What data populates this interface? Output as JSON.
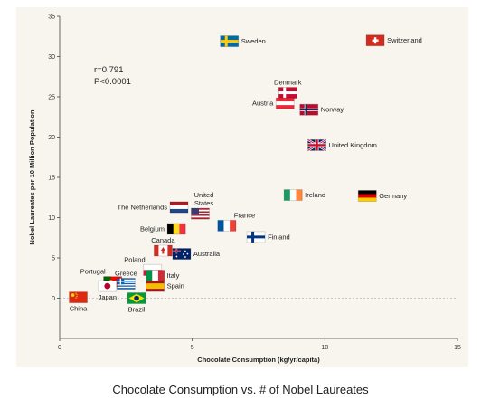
{
  "caption": "Chocolate Consumption vs. # of Nobel Laureates",
  "chart_data": {
    "type": "scatter",
    "title": "",
    "xlabel": "Chocolate Consumption (kg/yr/capita)",
    "ylabel": "Nobel Laureates per 10 Million Population",
    "xlim": [
      0,
      15
    ],
    "ylim": [
      -5,
      35
    ],
    "xticks": [
      0,
      5,
      10,
      15
    ],
    "yticks": [
      0,
      5,
      10,
      15,
      20,
      25,
      30,
      35
    ],
    "grid": false,
    "reference_line": 0,
    "annotations": [
      "r=0.791",
      "P<0.0001"
    ],
    "points": [
      {
        "country": "Switzerland",
        "x": 11.9,
        "y": 32.0,
        "label": "Switzerland",
        "flag": "switzerland",
        "label_side": "right"
      },
      {
        "country": "Sweden",
        "x": 6.4,
        "y": 31.9,
        "label": "Sweden",
        "flag": "sweden",
        "label_side": "right"
      },
      {
        "country": "Denmark",
        "x": 8.6,
        "y": 25.5,
        "label": "Denmark",
        "flag": "denmark",
        "label_side": "above"
      },
      {
        "country": "Austria",
        "x": 8.5,
        "y": 24.2,
        "label": "Austria",
        "flag": "austria",
        "label_side": "left"
      },
      {
        "country": "Norway",
        "x": 9.4,
        "y": 23.4,
        "label": "Norway",
        "flag": "norway",
        "label_side": "right"
      },
      {
        "country": "United Kingdom",
        "x": 9.7,
        "y": 19.0,
        "label": "United Kingdom",
        "flag": "uk",
        "label_side": "right"
      },
      {
        "country": "Ireland",
        "x": 8.8,
        "y": 12.8,
        "label": "Ireland",
        "flag": "ireland",
        "label_side": "right"
      },
      {
        "country": "Germany",
        "x": 11.6,
        "y": 12.7,
        "label": "Germany",
        "flag": "germany",
        "label_side": "right"
      },
      {
        "country": "United States",
        "x": 5.3,
        "y": 10.5,
        "label": "United\nStates",
        "flag": "usa",
        "label_side": "above-left"
      },
      {
        "country": "The Netherlands",
        "x": 4.5,
        "y": 11.3,
        "label": "The Netherlands",
        "flag": "netherlands",
        "label_side": "left"
      },
      {
        "country": "France",
        "x": 6.3,
        "y": 9.0,
        "label": "France",
        "flag": "france",
        "label_side": "above-right"
      },
      {
        "country": "Belgium",
        "x": 4.4,
        "y": 8.6,
        "label": "Belgium",
        "flag": "belgium",
        "label_side": "left"
      },
      {
        "country": "Finland",
        "x": 7.4,
        "y": 7.6,
        "label": "Finland",
        "flag": "finland",
        "label_side": "right"
      },
      {
        "country": "Canada",
        "x": 3.9,
        "y": 5.9,
        "label": "Canada",
        "flag": "canada",
        "label_side": "above"
      },
      {
        "country": "Australia",
        "x": 4.6,
        "y": 5.5,
        "label": "Australia",
        "flag": "australia",
        "label_side": "right"
      },
      {
        "country": "Poland",
        "x": 3.5,
        "y": 3.5,
        "label": "Poland",
        "flag": "poland",
        "label_side": "above-left"
      },
      {
        "country": "Portugal",
        "x": 2.0,
        "y": 2.0,
        "label": "Portugal",
        "flag": "portugal",
        "label_side": "above-left"
      },
      {
        "country": "Greece",
        "x": 2.5,
        "y": 1.8,
        "label": "Greece",
        "flag": "greece",
        "label_side": "above"
      },
      {
        "country": "Italy",
        "x": 3.6,
        "y": 2.8,
        "label": "Italy",
        "flag": "italy",
        "label_side": "right"
      },
      {
        "country": "Spain",
        "x": 3.6,
        "y": 1.5,
        "label": "Spain",
        "flag": "spain",
        "label_side": "right"
      },
      {
        "country": "Japan",
        "x": 1.8,
        "y": 1.5,
        "label": "Japan",
        "flag": "japan",
        "label_side": "below"
      },
      {
        "country": "China",
        "x": 0.7,
        "y": 0.1,
        "label": "China",
        "flag": "china",
        "label_side": "below"
      },
      {
        "country": "Brazil",
        "x": 2.9,
        "y": 0.0,
        "label": "Brazil",
        "flag": "brazil",
        "label_side": "below"
      }
    ]
  }
}
